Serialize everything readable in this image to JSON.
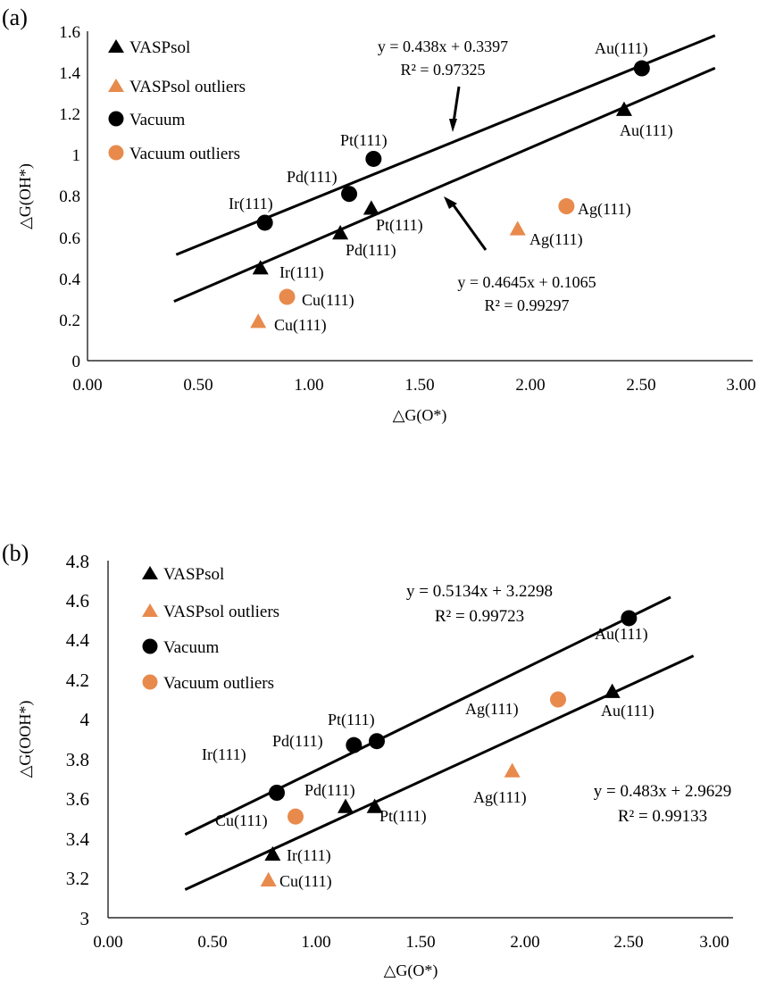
{
  "chart_data": [
    {
      "type": "scatter",
      "panel_label": "(a)",
      "xlabel": "△G(O*)",
      "ylabel": "△G(OH*)",
      "xlim": [
        0,
        3
      ],
      "ylim": [
        0,
        1.6
      ],
      "x_ticks": [
        "0.00",
        "0.50",
        "1.00",
        "1.50",
        "2.00",
        "2.50",
        "3.00"
      ],
      "y_ticks": [
        "0",
        "0.2",
        "0.4",
        "0.6",
        "0.8",
        "1",
        "1.2",
        "1.4",
        "1.6"
      ],
      "legend": [
        {
          "label": "VASPsol",
          "marker": "triangle",
          "color": "#000000"
        },
        {
          "label": "VASPsol outliers",
          "marker": "triangle",
          "color": "#e88a4c"
        },
        {
          "label": "Vacuum",
          "marker": "circle",
          "color": "#000000"
        },
        {
          "label": "Vacuum outliers",
          "marker": "circle",
          "color": "#e88a4c"
        }
      ],
      "series": [
        {
          "name": "VASPsol",
          "marker": "triangle",
          "color": "#000000",
          "points": [
            {
              "x": 0.78,
              "y": 0.45,
              "label": "Ir(111)"
            },
            {
              "x": 1.14,
              "y": 0.62,
              "label": "Pd(111)"
            },
            {
              "x": 1.28,
              "y": 0.74,
              "label": "Pt(111)"
            },
            {
              "x": 2.42,
              "y": 1.22,
              "label": "Au(111)"
            }
          ]
        },
        {
          "name": "VASPsol outliers",
          "marker": "triangle",
          "color": "#e88a4c",
          "points": [
            {
              "x": 0.77,
              "y": 0.19,
              "label": "Cu(111)"
            },
            {
              "x": 1.94,
              "y": 0.64,
              "label": "Ag(111)"
            }
          ]
        },
        {
          "name": "Vacuum",
          "marker": "circle",
          "color": "#000000",
          "points": [
            {
              "x": 0.8,
              "y": 0.67,
              "label": "Ir(111)"
            },
            {
              "x": 1.18,
              "y": 0.81,
              "label": "Pd(111)"
            },
            {
              "x": 1.29,
              "y": 0.98,
              "label": "Pt(111)"
            },
            {
              "x": 2.5,
              "y": 1.42,
              "label": "Au(111)"
            }
          ]
        },
        {
          "name": "Vacuum outliers",
          "marker": "circle",
          "color": "#e88a4c",
          "points": [
            {
              "x": 0.9,
              "y": 0.31,
              "label": "Cu(111)"
            },
            {
              "x": 2.16,
              "y": 0.75,
              "label": "Ag(111)"
            }
          ]
        }
      ],
      "fits": [
        {
          "series": "Vacuum",
          "slope": 0.438,
          "intercept": 0.3397,
          "x_range": [
            0.4,
            2.83
          ],
          "equation": "y = 0.438x + 0.3397",
          "r2": "R² = 0.97325"
        },
        {
          "series": "VASPsol",
          "slope": 0.4645,
          "intercept": 0.1065,
          "x_range": [
            0.39,
            2.83
          ],
          "equation": "y = 0.4645x + 0.1065",
          "r2": "R² = 0.99297"
        }
      ]
    },
    {
      "type": "scatter",
      "panel_label": "(b)",
      "xlabel": "△G(O*)",
      "ylabel": "△G(OOH*)",
      "xlim": [
        0,
        3
      ],
      "ylim": [
        3,
        4.8
      ],
      "x_ticks": [
        "0.00",
        "0.50",
        "1.00",
        "1.50",
        "2.00",
        "2.50",
        "3.00"
      ],
      "y_ticks": [
        "3",
        "3.2",
        "3.4",
        "3.6",
        "3.8",
        "4",
        "4.2",
        "4.4",
        "4.6",
        "4.8"
      ],
      "legend": [
        {
          "label": "VASPsol",
          "marker": "triangle",
          "color": "#000000"
        },
        {
          "label": "VASPsol outliers",
          "marker": "triangle",
          "color": "#e88a4c"
        },
        {
          "label": "Vacuum",
          "marker": "circle",
          "color": "#000000"
        },
        {
          "label": "Vacuum outliers",
          "marker": "circle",
          "color": "#e88a4c"
        }
      ],
      "series": [
        {
          "name": "VASPsol",
          "marker": "triangle",
          "color": "#000000",
          "points": [
            {
              "x": 0.79,
              "y": 3.32,
              "label": "Ir(111)"
            },
            {
              "x": 1.14,
              "y": 3.56,
              "label": "Pd(111)"
            },
            {
              "x": 1.28,
              "y": 3.56,
              "label": "Pt(111)"
            },
            {
              "x": 2.42,
              "y": 4.14,
              "label": "Au(111)"
            }
          ]
        },
        {
          "name": "VASPsol outliers",
          "marker": "triangle",
          "color": "#e88a4c",
          "points": [
            {
              "x": 0.77,
              "y": 3.19,
              "label": "Cu(111)"
            },
            {
              "x": 1.94,
              "y": 3.74,
              "label": "Ag(111)"
            }
          ]
        },
        {
          "name": "Vacuum",
          "marker": "circle",
          "color": "#000000",
          "points": [
            {
              "x": 0.81,
              "y": 3.63,
              "label": "Ir(111)"
            },
            {
              "x": 1.18,
              "y": 3.87,
              "label": "Pd(111)"
            },
            {
              "x": 1.29,
              "y": 3.89,
              "label": "Pt(111)"
            },
            {
              "x": 2.5,
              "y": 4.51,
              "label": "Au(111)"
            }
          ]
        },
        {
          "name": "Vacuum outliers",
          "marker": "circle",
          "color": "#e88a4c",
          "points": [
            {
              "x": 0.9,
              "y": 3.51,
              "label": "Cu(111)"
            },
            {
              "x": 2.16,
              "y": 4.1,
              "label": "Ag(111)"
            }
          ]
        }
      ],
      "fits": [
        {
          "series": "Vacuum",
          "slope": 0.5134,
          "intercept": 3.2298,
          "x_range": [
            0.37,
            2.7
          ],
          "equation": "y = 0.5134x + 3.2298",
          "r2": "R² = 0.99723"
        },
        {
          "series": "VASPsol",
          "slope": 0.483,
          "intercept": 2.9629,
          "x_range": [
            0.37,
            2.81
          ],
          "equation": "y = 0.483x + 2.9629",
          "r2": "R² = 0.99133"
        }
      ]
    }
  ]
}
